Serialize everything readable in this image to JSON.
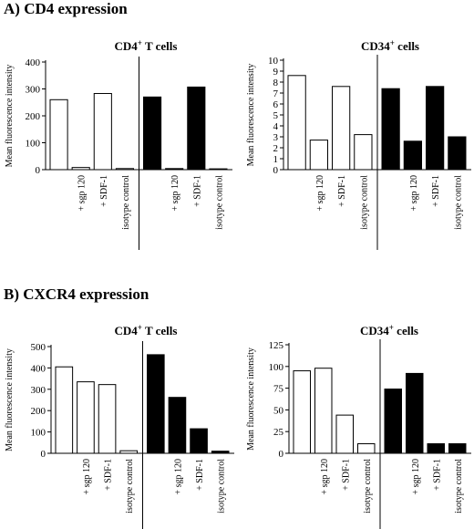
{
  "sections": [
    {
      "label": "A) CD4 expression"
    },
    {
      "label": "B) CXCR4 expression"
    }
  ],
  "chart_data": [
    {
      "type": "bar",
      "title": "CD4",
      "title_sup": "+",
      "title_rest": " T cells",
      "ylabel": "Mean fluorescence intensity",
      "ylim": [
        0,
        400
      ],
      "yticks": [
        "0",
        "100",
        "200",
        "300",
        "400"
      ],
      "categories": [
        "",
        "+ sgp 120",
        "+ SDF-1",
        "isotype control"
      ],
      "series": [
        {
          "fill": "#ffffff",
          "values": [
            260,
            8,
            283,
            4
          ]
        },
        {
          "fill": "#000000",
          "values": [
            270,
            4,
            307,
            3
          ]
        }
      ]
    },
    {
      "type": "bar",
      "title": "CD34",
      "title_sup": "+",
      "title_rest": " cells",
      "ylabel": "Mean fluorescence intensity",
      "ylim": [
        0,
        10
      ],
      "yticks": [
        "0",
        "1",
        "2",
        "3",
        "4",
        "5",
        "6",
        "7",
        "8",
        "9",
        "10"
      ],
      "categories": [
        "",
        "+ sgp 120",
        "+ SDF-1",
        "isotype control"
      ],
      "series": [
        {
          "fill": "#ffffff",
          "values": [
            8.6,
            2.7,
            7.6,
            3.2
          ]
        },
        {
          "fill": "#000000",
          "values": [
            7.4,
            2.6,
            7.6,
            3.0
          ]
        }
      ]
    },
    {
      "type": "bar",
      "title": "CD4",
      "title_sup": "+",
      "title_rest": " T cells",
      "ylabel": "Mean fluorescence intensity",
      "ylim": [
        0,
        500
      ],
      "yticks": [
        "0",
        "100",
        "200",
        "300",
        "400",
        "500"
      ],
      "categories": [
        "",
        "+ sgp 120",
        "+ SDF-1",
        "isotype control"
      ],
      "series": [
        {
          "fill": "#ffffff",
          "values": [
            405,
            335,
            322,
            12
          ]
        },
        {
          "fill": "#000000",
          "values": [
            462,
            262,
            115,
            10
          ]
        }
      ]
    },
    {
      "type": "bar",
      "title": "CD34",
      "title_sup": "+",
      "title_rest": " cells",
      "ylabel": "Mean fluorescence intensity",
      "ylim": [
        0,
        125
      ],
      "yticks": [
        "0",
        "25",
        "50",
        "75",
        "100",
        "125"
      ],
      "categories": [
        "",
        "+ sgp 120",
        "+ SDF-1",
        "isotype control"
      ],
      "series": [
        {
          "fill": "#ffffff",
          "values": [
            95,
            98,
            44,
            11
          ]
        },
        {
          "fill": "#000000",
          "values": [
            74,
            92,
            11,
            11
          ]
        }
      ]
    }
  ]
}
